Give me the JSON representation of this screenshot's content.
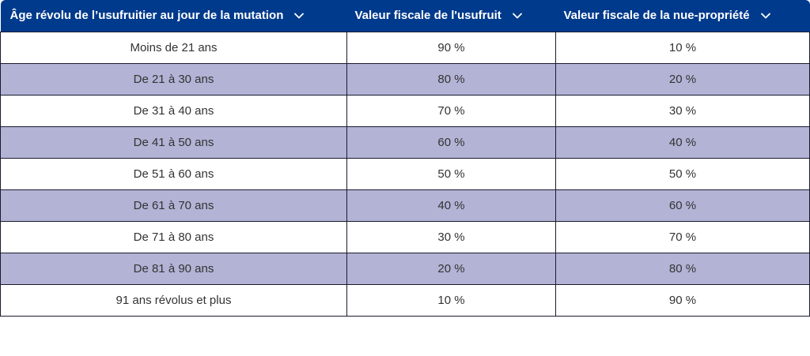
{
  "table": {
    "columns": [
      "Âge révolu de l’usufruitier au jour de la mutation",
      "Valeur fiscale de l'usufruit",
      "Valeur fiscale de la nue-propriété"
    ],
    "sort_icon": "chevron-down-icon",
    "header_color": "#003a8c",
    "stripe_color": "#b3b3d6",
    "rows": [
      {
        "age": "Moins de 21 ans",
        "usufruit": "90 %",
        "nue": "10 %"
      },
      {
        "age": "De 21 à 30 ans",
        "usufruit": "80 %",
        "nue": "20 %"
      },
      {
        "age": "De 31 à 40 ans",
        "usufruit": "70 %",
        "nue": "30 %"
      },
      {
        "age": "De 41 à 50 ans",
        "usufruit": "60 %",
        "nue": "40 %"
      },
      {
        "age": "De 51 à 60 ans",
        "usufruit": "50 %",
        "nue": "50 %"
      },
      {
        "age": "De 61 à 70 ans",
        "usufruit": "40 %",
        "nue": "60 %"
      },
      {
        "age": "De 71 à 80 ans",
        "usufruit": "30 %",
        "nue": "70 %"
      },
      {
        "age": "De 81 à 90 ans",
        "usufruit": "20 %",
        "nue": "80 %"
      },
      {
        "age": "91 ans révolus et plus",
        "usufruit": "10 %",
        "nue": "90 %"
      }
    ]
  }
}
